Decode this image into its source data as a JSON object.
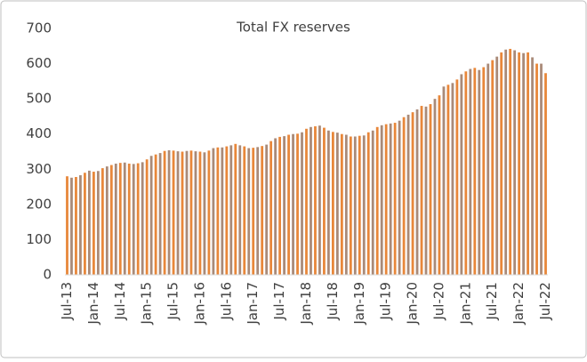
{
  "chart_data": {
    "type": "bar",
    "title": "Total FX reserves",
    "categories": [
      "Jul-13",
      null,
      null,
      null,
      null,
      null,
      "Jan-14",
      null,
      null,
      null,
      null,
      null,
      "Jul-14",
      null,
      null,
      null,
      null,
      null,
      "Jan-15",
      null,
      null,
      null,
      null,
      null,
      "Jul-15",
      null,
      null,
      null,
      null,
      null,
      "Jan-16",
      null,
      null,
      null,
      null,
      null,
      "Jul-16",
      null,
      null,
      null,
      null,
      null,
      "Jan-17",
      null,
      null,
      null,
      null,
      null,
      "Jul-17",
      null,
      null,
      null,
      null,
      null,
      "Jan-18",
      null,
      null,
      null,
      null,
      null,
      "Jul-18",
      null,
      null,
      null,
      null,
      null,
      "Jan-19",
      null,
      null,
      null,
      null,
      null,
      "Jul-19",
      null,
      null,
      null,
      null,
      null,
      "Jan-20",
      null,
      null,
      null,
      null,
      null,
      "Jul-20",
      null,
      null,
      null,
      null,
      null,
      "Jan-21",
      null,
      null,
      null,
      null,
      null,
      "Jul-21",
      null,
      null,
      null,
      null,
      null,
      "Jan-22",
      null,
      null,
      null,
      null,
      null,
      "Jul-22"
    ],
    "values": [
      280,
      276,
      278,
      283,
      290,
      296,
      293,
      295,
      303,
      308,
      312,
      316,
      318,
      319,
      316,
      315,
      317,
      320,
      328,
      338,
      342,
      346,
      352,
      354,
      353,
      351,
      350,
      352,
      353,
      351,
      350,
      348,
      353,
      360,
      362,
      362,
      365,
      368,
      372,
      368,
      365,
      360,
      361,
      363,
      366,
      370,
      380,
      388,
      392,
      394,
      398,
      400,
      401,
      405,
      415,
      420,
      422,
      424,
      418,
      410,
      406,
      404,
      400,
      398,
      393,
      393,
      395,
      396,
      405,
      410,
      420,
      425,
      428,
      430,
      432,
      438,
      448,
      455,
      462,
      470,
      480,
      478,
      485,
      500,
      510,
      535,
      540,
      545,
      555,
      570,
      578,
      585,
      588,
      582,
      590,
      600,
      610,
      620,
      632,
      640,
      642,
      638,
      632,
      630,
      632,
      618,
      600,
      600,
      573
    ],
    "colors": [
      "#e8873a",
      "#a98a78"
    ],
    "ylim": [
      0,
      700
    ],
    "yticks": [
      0,
      100,
      200,
      300,
      400,
      500,
      600,
      700
    ],
    "grid": false
  }
}
